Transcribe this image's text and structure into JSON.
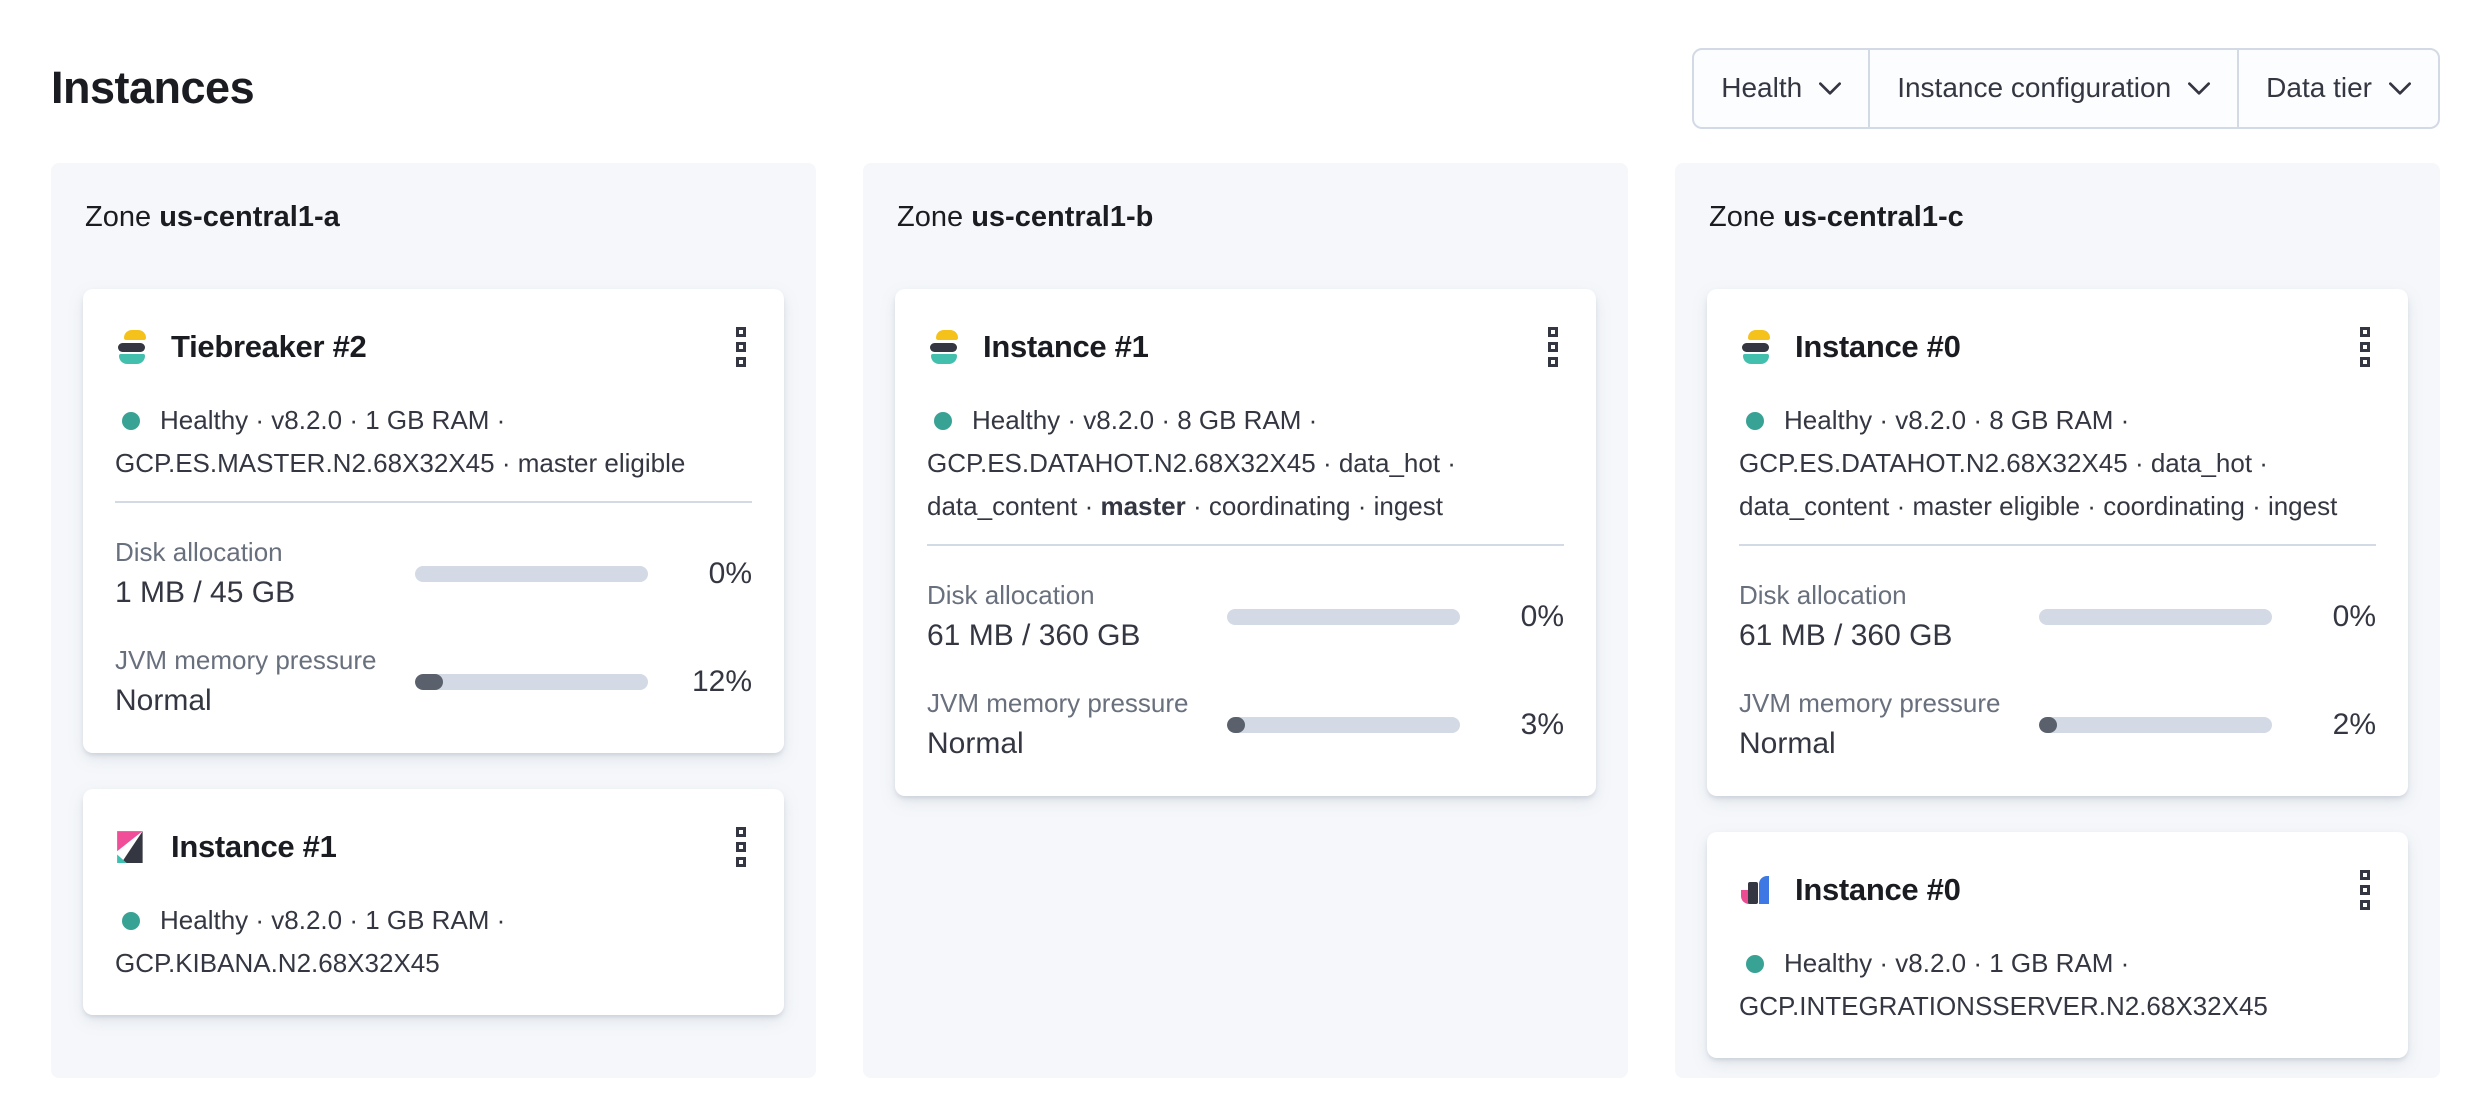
{
  "header": {
    "title": "Instances"
  },
  "filters": {
    "buttons": [
      {
        "label": "Health"
      },
      {
        "label": "Instance configuration"
      },
      {
        "label": "Data tier"
      }
    ]
  },
  "colors": {
    "healthy_dot": "#38a294",
    "panel_background": "#f5f7fa",
    "bar_track": "#d3dae6",
    "bar_fill": "#5a616c",
    "elasticsearch_logo": [
      "#f5c21b",
      "#343741",
      "#43bfae"
    ],
    "kibana_logo": [
      "#f04e98",
      "#343741",
      "#3fbfaf"
    ],
    "integrations_server_logo": [
      "#ec4c92",
      "#343741",
      "#3d78e5"
    ]
  },
  "zones": [
    {
      "prefix": "Zone",
      "name": "us-central1-a",
      "cards": [
        {
          "title": "Tiebreaker #2",
          "logo": "elasticsearch",
          "status_line1": "Healthy · v8.2.0 · 1 GB RAM ·",
          "status_line2": "GCP.ES.MASTER.N2.68X32X45 · master eligible",
          "metrics": {
            "disk": {
              "label": "Disk allocation",
              "value": "1 MB / 45 GB",
              "percent": 0,
              "percent_label": "0%"
            },
            "jvm": {
              "label": "JVM memory pressure",
              "value": "Normal",
              "percent": 12,
              "percent_label": "12%"
            }
          }
        },
        {
          "title": "Instance #1",
          "logo": "kibana",
          "status_line1": "Healthy · v8.2.0 · 1 GB RAM ·",
          "status_line2": "GCP.KIBANA.N2.68X32X45"
        }
      ]
    },
    {
      "prefix": "Zone",
      "name": "us-central1-b",
      "cards": [
        {
          "title": "Instance #1",
          "logo": "elasticsearch",
          "status_line1": "Healthy · v8.2.0 · 8 GB RAM ·",
          "status_line2": "GCP.ES.DATAHOT.N2.68X32X45 · data_hot ·",
          "status_line3": {
            "pre": "data_content · ",
            "em": "master",
            "post": " · coordinating · ingest"
          },
          "metrics": {
            "disk": {
              "label": "Disk allocation",
              "value": "61 MB / 360 GB",
              "percent": 0,
              "percent_label": "0%"
            },
            "jvm": {
              "label": "JVM memory pressure",
              "value": "Normal",
              "percent": 3,
              "percent_label": "3%"
            }
          }
        }
      ]
    },
    {
      "prefix": "Zone",
      "name": "us-central1-c",
      "cards": [
        {
          "title": "Instance #0",
          "logo": "elasticsearch",
          "status_line1": "Healthy · v8.2.0 · 8 GB RAM ·",
          "status_line2": "GCP.ES.DATAHOT.N2.68X32X45 · data_hot ·",
          "status_line3": {
            "pre": "data_content · master eligible · coordinating · ingest",
            "em": "",
            "post": ""
          },
          "metrics": {
            "disk": {
              "label": "Disk allocation",
              "value": "61 MB / 360 GB",
              "percent": 0,
              "percent_label": "0%"
            },
            "jvm": {
              "label": "JVM memory pressure",
              "value": "Normal",
              "percent": 2,
              "percent_label": "2%"
            }
          }
        },
        {
          "title": "Instance #0",
          "logo": "integrations_server",
          "status_line1": "Healthy · v8.2.0 · 1 GB RAM ·",
          "status_line2": "GCP.INTEGRATIONSSERVER.N2.68X32X45"
        }
      ]
    }
  ]
}
